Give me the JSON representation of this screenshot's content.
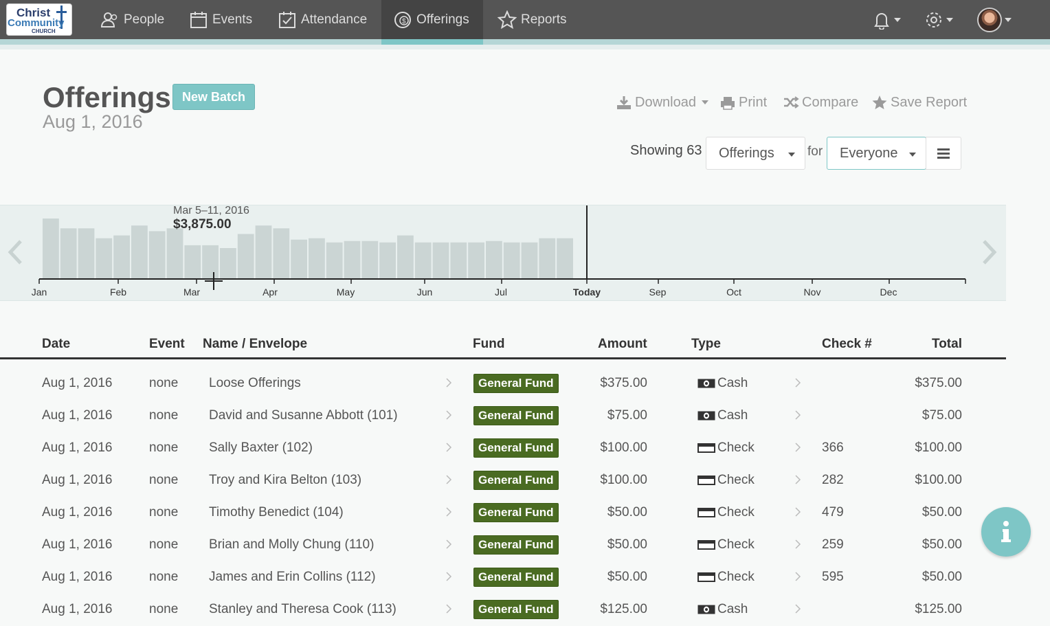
{
  "logo": {
    "line1": "Christ",
    "line2": "Community",
    "line3": "CHURCH"
  },
  "nav": {
    "items": [
      {
        "label": "People",
        "icon": "people-icon"
      },
      {
        "label": "Events",
        "icon": "calendar-icon"
      },
      {
        "label": "Attendance",
        "icon": "checkbox-icon"
      },
      {
        "label": "Offerings",
        "icon": "dollar-circle-icon",
        "active": true
      },
      {
        "label": "Reports",
        "icon": "star-icon"
      }
    ]
  },
  "header": {
    "title": "Offerings",
    "date": "Aug 1, 2016",
    "new_batch": "New Batch",
    "actions": {
      "download": "Download",
      "print": "Print",
      "compare": "Compare",
      "save_report": "Save Report"
    },
    "showing": "Showing 63",
    "filter_type": "Offerings",
    "for_label": "for",
    "filter_who": "Everyone"
  },
  "timeline": {
    "tooltip_date": "Mar 5–11, 2016",
    "tooltip_amount": "$3,875.00",
    "today_label": "Today"
  },
  "chart_data": {
    "type": "bar",
    "months": [
      "Jan",
      "Feb",
      "Mar",
      "Apr",
      "May",
      "Jun",
      "Jul",
      "Today",
      "Sep",
      "Oct",
      "Nov",
      "Dec"
    ],
    "weekly_values": [
      4300,
      3600,
      3600,
      2900,
      3100,
      3800,
      3400,
      3600,
      2400,
      2400,
      2200,
      3200,
      3800,
      3600,
      2800,
      2900,
      2600,
      2700,
      2700,
      2600,
      3100,
      2600,
      2600,
      2600,
      2600,
      2700,
      2600,
      2600,
      2900,
      2900
    ],
    "highlight_week": "Mar 5–11, 2016",
    "highlight_value": 3875.0
  },
  "table": {
    "headers": {
      "date": "Date",
      "event": "Event",
      "name": "Name / Envelope",
      "fund": "Fund",
      "amount": "Amount",
      "type": "Type",
      "check": "Check #",
      "total": "Total"
    },
    "rows": [
      {
        "date": "Aug 1, 2016",
        "event": "none",
        "name": "Loose Offerings",
        "fund": "General Fund",
        "amount": "$375.00",
        "type": "Cash",
        "check": "",
        "total": "$375.00"
      },
      {
        "date": "Aug 1, 2016",
        "event": "none",
        "name": "David and Susanne Abbott (101)",
        "fund": "General Fund",
        "amount": "$75.00",
        "type": "Cash",
        "check": "",
        "total": "$75.00"
      },
      {
        "date": "Aug 1, 2016",
        "event": "none",
        "name": "Sally Baxter (102)",
        "fund": "General Fund",
        "amount": "$100.00",
        "type": "Check",
        "check": "366",
        "total": "$100.00"
      },
      {
        "date": "Aug 1, 2016",
        "event": "none",
        "name": "Troy and Kira Belton (103)",
        "fund": "General Fund",
        "amount": "$100.00",
        "type": "Check",
        "check": "282",
        "total": "$100.00"
      },
      {
        "date": "Aug 1, 2016",
        "event": "none",
        "name": "Timothy Benedict (104)",
        "fund": "General Fund",
        "amount": "$50.00",
        "type": "Check",
        "check": "479",
        "total": "$50.00"
      },
      {
        "date": "Aug 1, 2016",
        "event": "none",
        "name": "Brian and Molly Chung (110)",
        "fund": "General Fund",
        "amount": "$50.00",
        "type": "Check",
        "check": "259",
        "total": "$50.00"
      },
      {
        "date": "Aug 1, 2016",
        "event": "none",
        "name": "James and Erin Collins (112)",
        "fund": "General Fund",
        "amount": "$50.00",
        "type": "Check",
        "check": "595",
        "total": "$50.00"
      },
      {
        "date": "Aug 1, 2016",
        "event": "none",
        "name": "Stanley and Theresa Cook (113)",
        "fund": "General Fund",
        "amount": "$125.00",
        "type": "Cash",
        "check": "",
        "total": "$125.00"
      }
    ]
  },
  "colors": {
    "accent": "#7ec6c6",
    "fund_badge": "#4a6b22",
    "nav_bg": "#555555"
  }
}
